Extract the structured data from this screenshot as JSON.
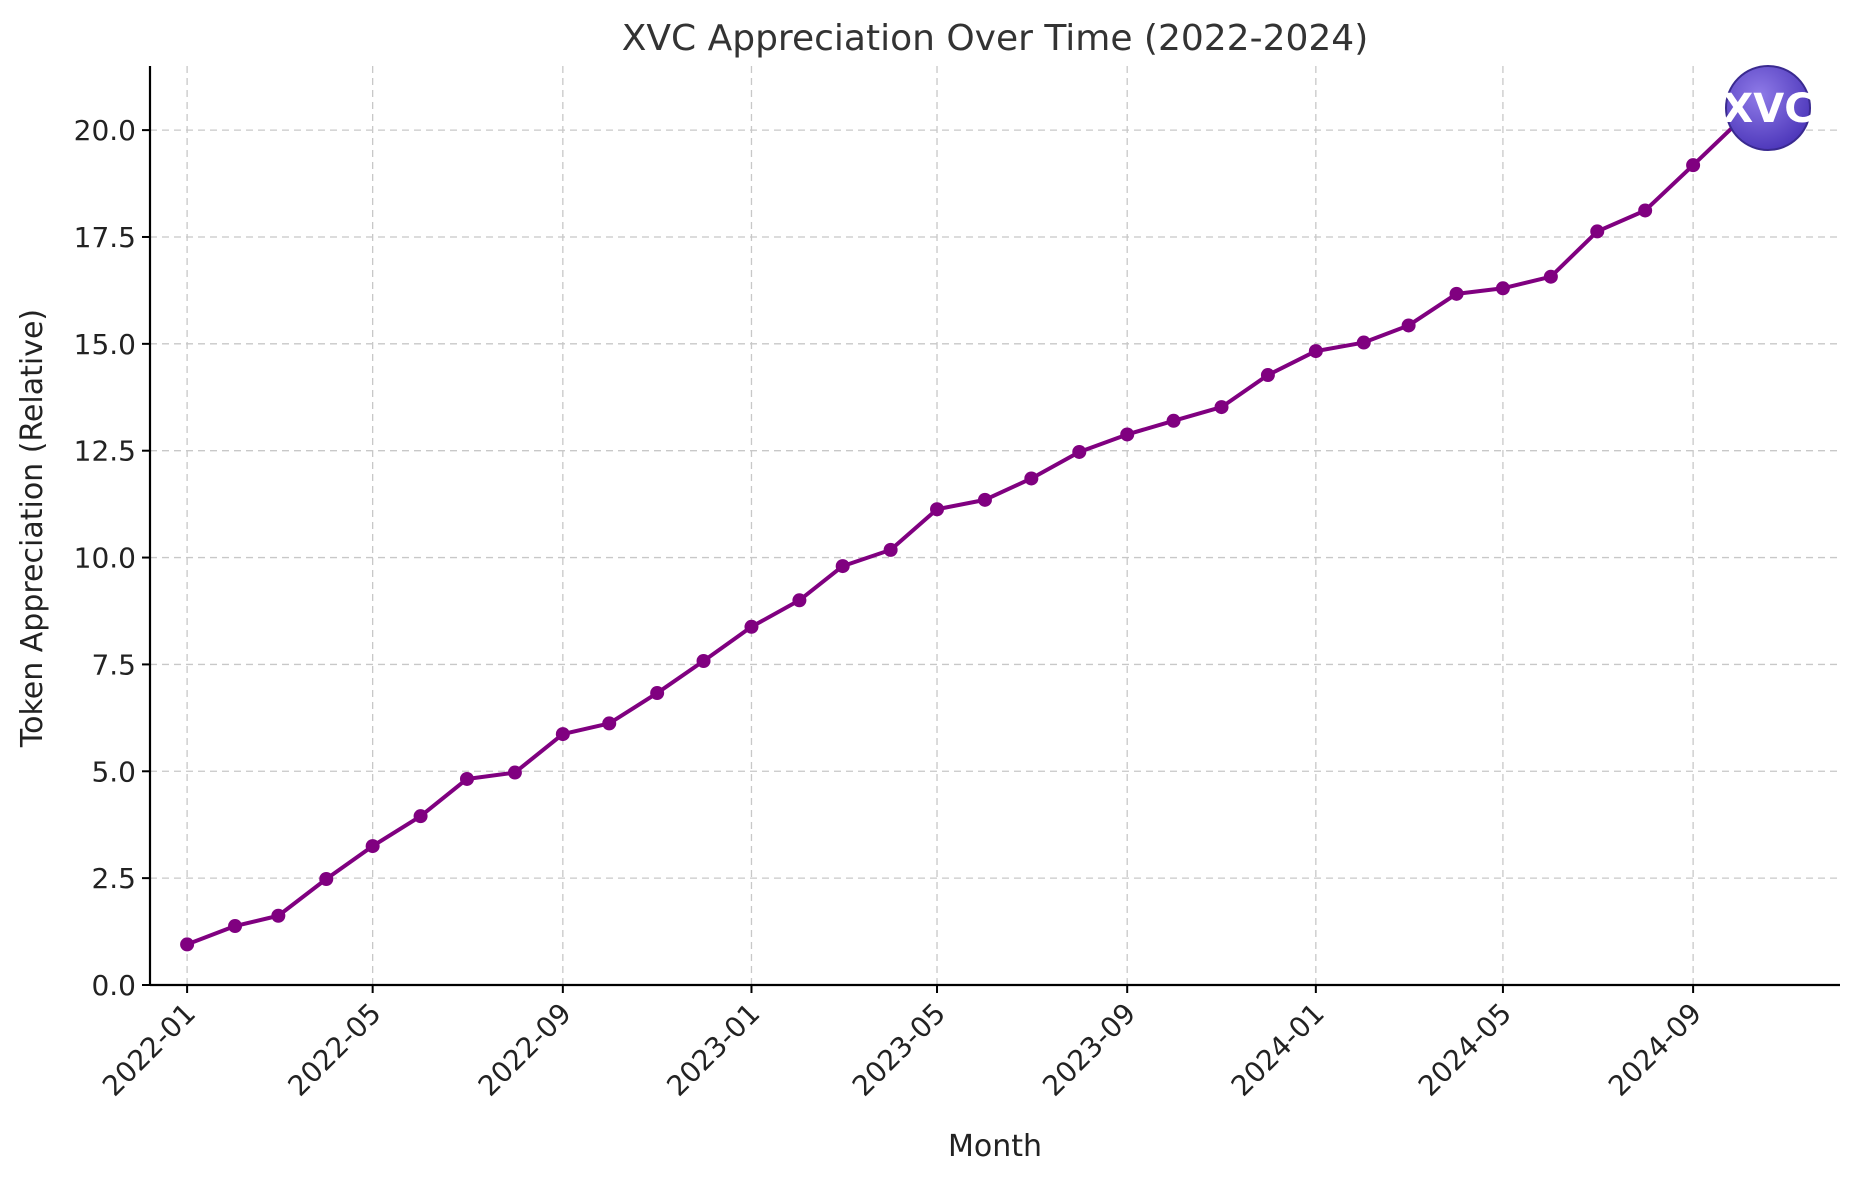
{
  "chart_data": {
    "type": "line",
    "title": "XVC Appreciation Over Time (2022-2024)",
    "xlabel": "Month",
    "ylabel": "Token Appreciation (Relative)",
    "x": [
      "2022-01",
      "2022-02",
      "2022-03",
      "2022-04",
      "2022-05",
      "2022-06",
      "2022-07",
      "2022-08",
      "2022-09",
      "2022-10",
      "2022-11",
      "2022-12",
      "2023-01",
      "2023-02",
      "2023-03",
      "2023-04",
      "2023-05",
      "2023-06",
      "2023-07",
      "2023-08",
      "2023-09",
      "2023-10",
      "2023-11",
      "2023-12",
      "2024-01",
      "2024-02",
      "2024-03",
      "2024-04",
      "2024-05",
      "2024-06",
      "2024-07",
      "2024-08",
      "2024-09",
      "2024-10"
    ],
    "values": [
      0.95,
      1.38,
      1.62,
      2.48,
      3.25,
      3.95,
      4.82,
      4.97,
      5.87,
      6.12,
      6.83,
      7.58,
      8.38,
      9.0,
      9.8,
      10.18,
      11.13,
      11.35,
      11.85,
      12.47,
      12.88,
      13.2,
      13.52,
      14.27,
      14.83,
      15.03,
      15.43,
      16.17,
      16.3,
      16.57,
      17.63,
      18.12,
      19.18,
      20.22
    ],
    "xticks": [
      "2022-01",
      "2022-05",
      "2022-09",
      "2023-01",
      "2023-05",
      "2023-09",
      "2024-01",
      "2024-05",
      "2024-09"
    ],
    "yticks": [
      0.0,
      2.5,
      5.0,
      7.5,
      10.0,
      12.5,
      15.0,
      17.5,
      20.0
    ],
    "ytick_labels": [
      "0.0",
      "2.5",
      "5.0",
      "7.5",
      "10.0",
      "12.5",
      "15.0",
      "17.5",
      "20.0"
    ],
    "xlim": [
      "2021-12-08",
      "2024-12-05"
    ],
    "ylim": [
      0,
      21.5
    ],
    "grid": true,
    "line_color": "#800080",
    "logo": {
      "text": "XVC",
      "color": "#6a4fcf"
    }
  }
}
